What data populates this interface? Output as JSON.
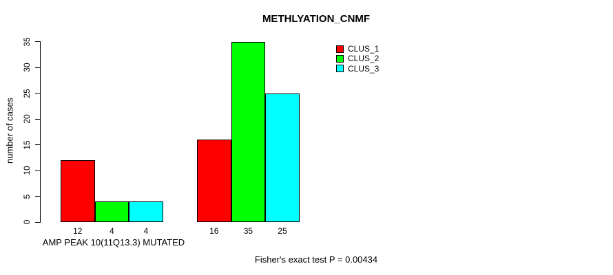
{
  "chart_data": {
    "type": "bar",
    "title": "METHLYATION_CNMF",
    "ylabel": "number of cases",
    "xlabel": "AMP PEAK 10(11Q13.3) MUTATED",
    "annotation": "Fisher's exact test P = 0.00434",
    "ylim": [
      0,
      35
    ],
    "yticks": [
      0,
      5,
      10,
      15,
      20,
      25,
      30,
      35
    ],
    "grid": false,
    "legend_position": "top-right",
    "groups": 2,
    "series": [
      {
        "name": "CLUS_1",
        "color": "#FF0000",
        "values": [
          12,
          16
        ]
      },
      {
        "name": "CLUS_2",
        "color": "#00FF00",
        "values": [
          4,
          35
        ]
      },
      {
        "name": "CLUS_3",
        "color": "#00FFFF",
        "values": [
          4,
          25
        ]
      }
    ]
  }
}
